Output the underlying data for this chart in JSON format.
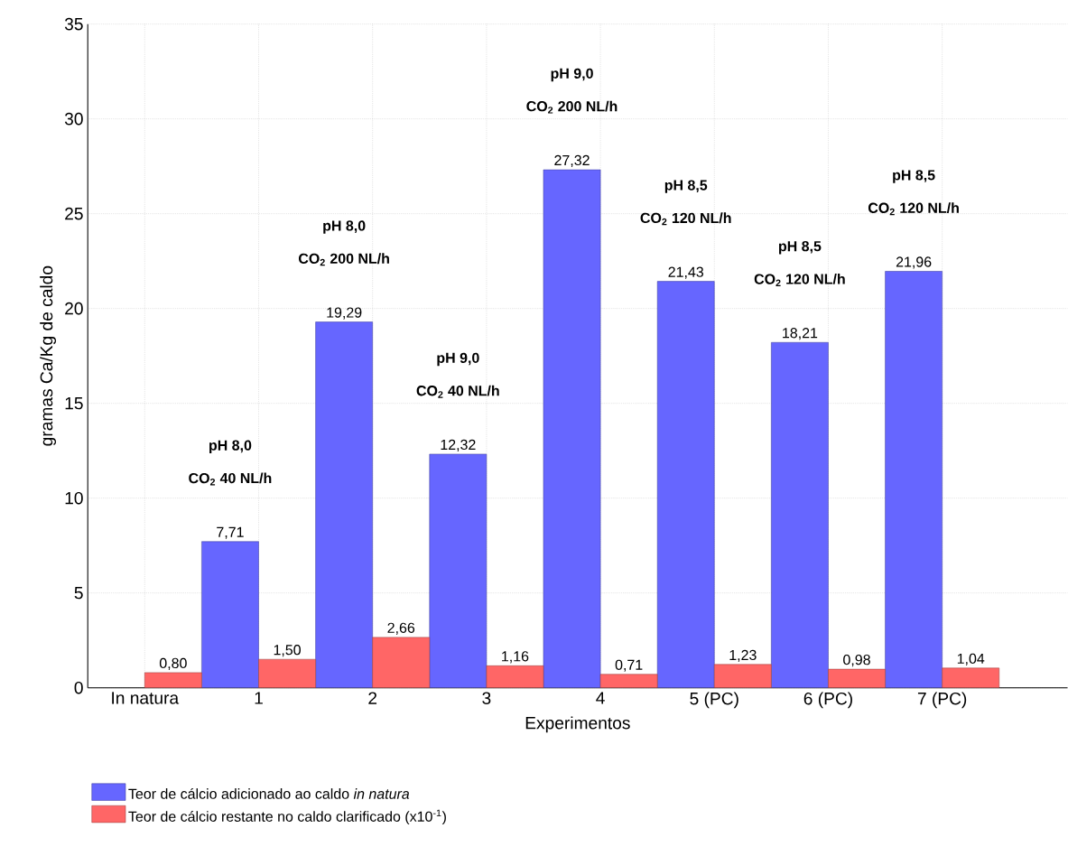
{
  "chart_data": {
    "type": "bar",
    "xlabel": "Experimentos",
    "ylabel": "gramas Ca/Kg de caldo",
    "categories": [
      "In natura",
      "1",
      "2",
      "3",
      "4",
      "5 (PC)",
      "6 (PC)",
      "7 (PC)"
    ],
    "ylim": [
      0,
      35
    ],
    "yticks": [
      0,
      5,
      10,
      15,
      20,
      25,
      30,
      35
    ],
    "grid": true,
    "legend": "bottom",
    "series": [
      {
        "name": "Teor de cálcio adicionado ao caldo *in natura*",
        "color": "#6666ff",
        "values": [
          null,
          7.71,
          19.29,
          12.32,
          27.32,
          21.43,
          18.21,
          21.96
        ],
        "value_labels": [
          null,
          "7,71",
          "19,29",
          "12,32",
          "27,32",
          "21,43",
          "18,21",
          "21,96"
        ]
      },
      {
        "name": "Teor de cálcio restante no caldo clarificado (x10$^{-1}$)",
        "color": "#ff6666",
        "values": [
          0.8,
          1.5,
          2.66,
          1.16,
          0.71,
          1.23,
          0.98,
          1.04
        ],
        "value_labels": [
          "0,80",
          "1,50",
          "2,66",
          "1,16",
          "0,71",
          "1,23",
          "0,98",
          "1,04"
        ]
      }
    ],
    "annotations": [
      "pH 8,0",
      "CO$_{2}$ 40 NL/h",
      "pH 8,0",
      "CO$_{2}$ 200 NL/h",
      "pH 9,0",
      "CO$_{2}$ 40 NL/h",
      "pH 9,0",
      "CO$_{2}$ 200 NL/h",
      "pH 8,5",
      "CO$_{2}$ 120 NL/h",
      "pH 8,5",
      "CO$_{2}$ 120 NL/h",
      "pH 8,5",
      "CO$_{2}$ 120 NL/h"
    ]
  }
}
